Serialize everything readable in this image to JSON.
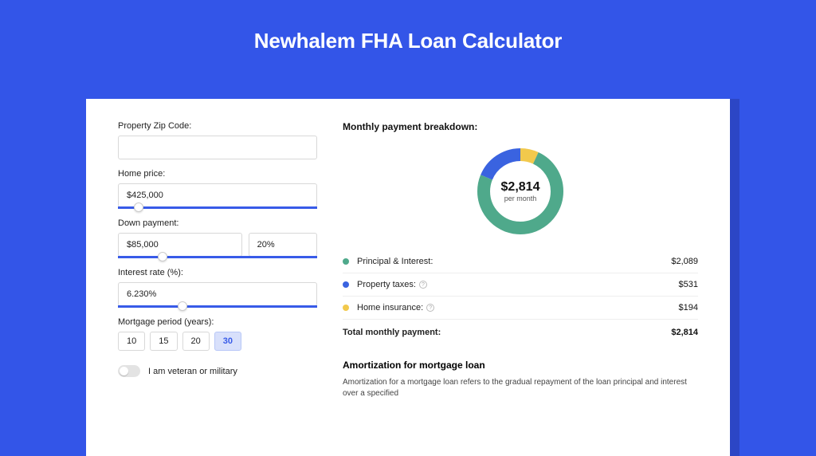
{
  "colors": {
    "page_bg": "#3355e8",
    "card_bg": "#ffffff",
    "shadow": "#2c46c5",
    "slider": "#385be8",
    "period_active_bg": "#d8e0fb",
    "period_active_text": "#385be8"
  },
  "title": "Newhalem FHA Loan Calculator",
  "form": {
    "zip": {
      "label": "Property Zip Code:",
      "value": ""
    },
    "home_price": {
      "label": "Home price:",
      "value": "$425,000",
      "slider_pct": 8
    },
    "down_payment": {
      "label": "Down payment:",
      "value": "$85,000",
      "pct": "20%",
      "slider_pct": 20
    },
    "interest": {
      "label": "Interest rate (%):",
      "value": "6.230%",
      "slider_pct": 30
    },
    "period": {
      "label": "Mortgage period (years):",
      "options": [
        "10",
        "15",
        "20",
        "30"
      ],
      "selected": "30"
    },
    "veteran": {
      "label": "I am veteran or military",
      "on": false
    }
  },
  "breakdown": {
    "title": "Monthly payment breakdown:",
    "donut": {
      "amount": "$2,814",
      "sub": "per month",
      "segments": [
        {
          "key": "principal",
          "color": "#4fa98b",
          "value": 2089,
          "pct": 74.2
        },
        {
          "key": "taxes",
          "color": "#3a63e0",
          "value": 531,
          "pct": 18.9
        },
        {
          "key": "insurance",
          "color": "#f2c94c",
          "value": 194,
          "pct": 6.9
        }
      ],
      "ring_width": 16
    },
    "legend": [
      {
        "label": "Principal & Interest:",
        "color": "#4fa98b",
        "value": "$2,089",
        "info": false
      },
      {
        "label": "Property taxes:",
        "color": "#3a63e0",
        "value": "$531",
        "info": true
      },
      {
        "label": "Home insurance:",
        "color": "#f2c94c",
        "value": "$194",
        "info": true
      }
    ],
    "total": {
      "label": "Total monthly payment:",
      "value": "$2,814"
    }
  },
  "amortization": {
    "title": "Amortization for mortgage loan",
    "text": "Amortization for a mortgage loan refers to the gradual repayment of the loan principal and interest over a specified"
  }
}
